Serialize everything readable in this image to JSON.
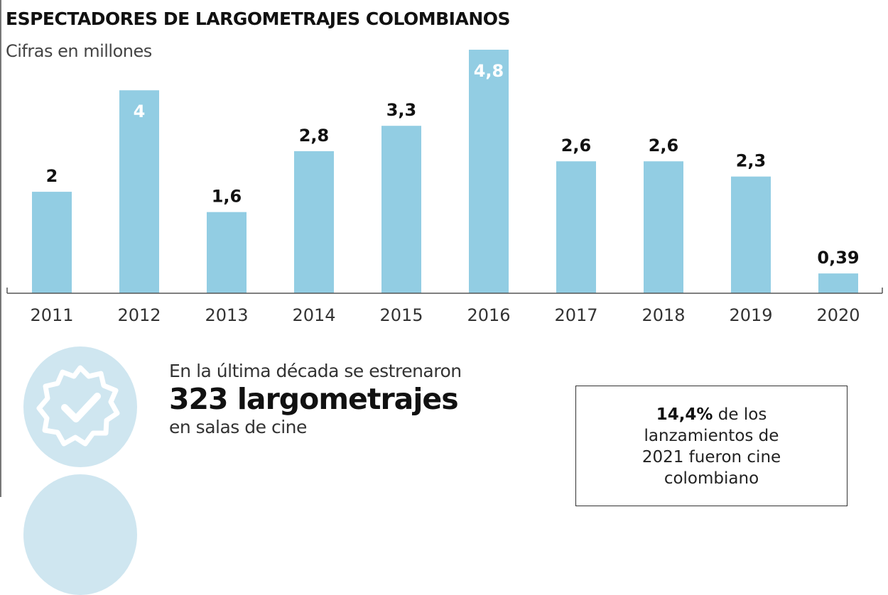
{
  "chart_data": {
    "type": "bar",
    "title": "ESPECTADORES DE LARGOMETRAJES COLOMBIANOS",
    "subtitle": "Cifras en millones",
    "categories": [
      "2011",
      "2012",
      "2013",
      "2014",
      "2015",
      "2016",
      "2017",
      "2018",
      "2019",
      "2020"
    ],
    "values": [
      2,
      4,
      1.6,
      2.8,
      3.3,
      4.8,
      2.6,
      2.6,
      2.3,
      0.39
    ],
    "labels": [
      "2",
      "4",
      "1,6",
      "2,8",
      "3,3",
      "4,8",
      "2,6",
      "2,6",
      "2,3",
      "0,39"
    ],
    "inside_label": [
      false,
      true,
      false,
      false,
      false,
      true,
      false,
      false,
      false,
      false
    ],
    "xlabel": "",
    "ylabel": "",
    "ylim": [
      0,
      4.8
    ],
    "grid": false,
    "bar_color": "#92cde3"
  },
  "stats": {
    "line1": "En la última década se estrenaron",
    "big": "323 largometrajes",
    "line3": "en salas de cine"
  },
  "box": {
    "bold": "14,4%",
    "rest1": " de los",
    "line2": "lanzamientos de",
    "line3": "2021 fueron cine",
    "line4": "colombiano"
  }
}
